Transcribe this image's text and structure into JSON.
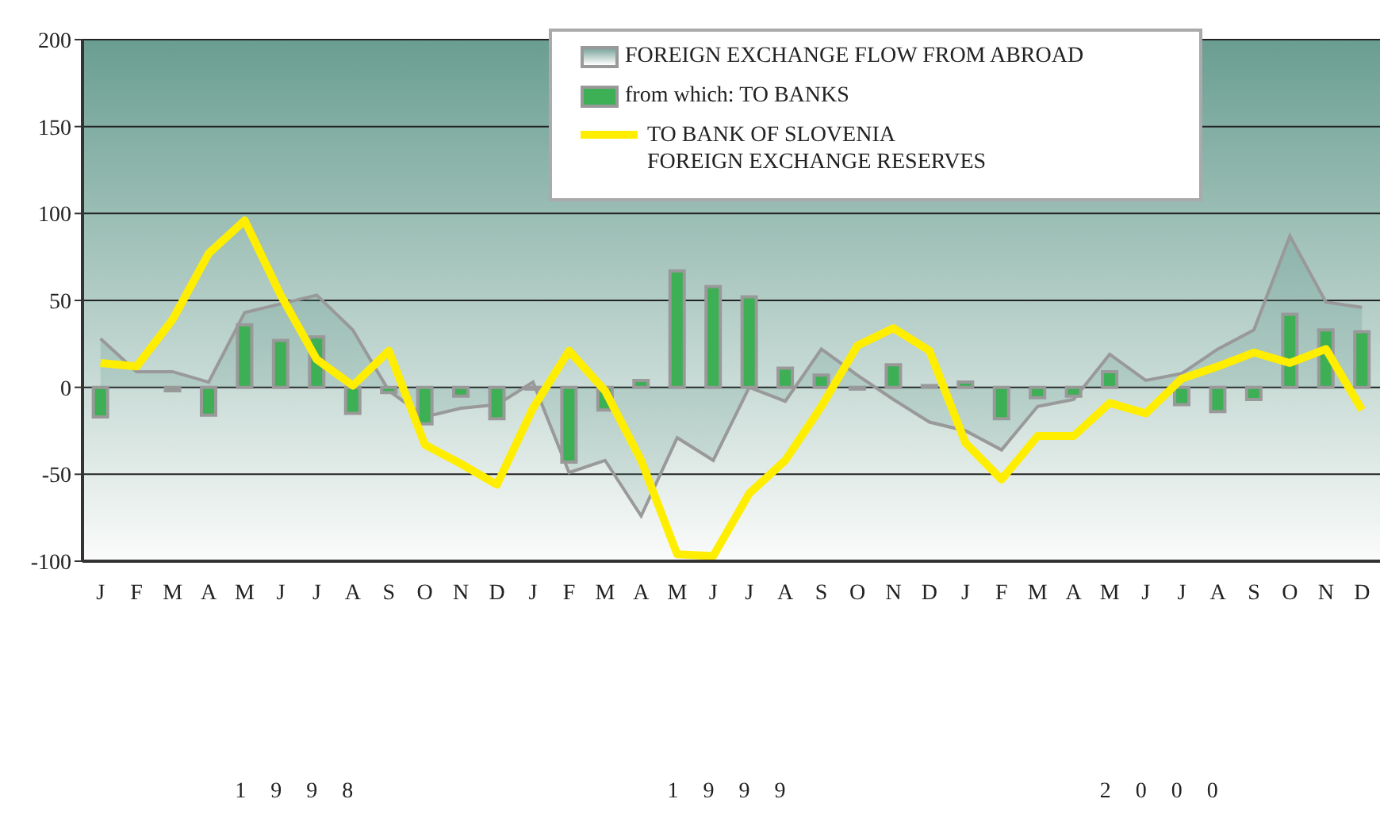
{
  "chart_data": {
    "type": "bar",
    "categories": [
      "J",
      "F",
      "M",
      "A",
      "M",
      "J",
      "J",
      "A",
      "S",
      "O",
      "N",
      "D",
      "J",
      "F",
      "M",
      "A",
      "M",
      "J",
      "J",
      "A",
      "S",
      "O",
      "N",
      "D",
      "J",
      "F",
      "M",
      "A",
      "M",
      "J",
      "J",
      "A",
      "S",
      "O",
      "N",
      "D"
    ],
    "series": [
      {
        "name": "FOREIGN EXCHANGE FLOW FROM ABROAD",
        "type": "area",
        "color": "#7fa89e",
        "values": [
          28,
          9,
          9,
          3,
          43,
          48,
          53,
          33,
          -2,
          -17,
          -12,
          -10,
          3,
          -49,
          -42,
          -74,
          -29,
          -42,
          0,
          -8,
          22,
          7,
          -7,
          -20,
          -25,
          -36,
          -11,
          -7,
          19,
          4,
          8,
          22,
          33,
          87,
          49,
          46
        ]
      },
      {
        "name": "from which: TO BANKS",
        "color": "#3daf55",
        "values": [
          -17,
          0,
          -2,
          -16,
          36,
          27,
          29,
          -15,
          -3,
          -21,
          -5,
          -18,
          -1,
          -43,
          -13,
          4,
          67,
          58,
          52,
          11,
          7,
          -1,
          13,
          1,
          3,
          -18,
          -6,
          -5,
          9,
          0,
          -10,
          -14,
          -7,
          42,
          33,
          32
        ]
      },
      {
        "name": "TO BANK OF SLOVENIA\nFOREIGN EXCHANGE RESERVES",
        "type": "line",
        "color": "#ffee00",
        "values": [
          14,
          12,
          39,
          77,
          96,
          53,
          16,
          1,
          21,
          -33,
          -44,
          -56,
          -12,
          21,
          -2,
          -42,
          -96,
          -97,
          -61,
          -42,
          -11,
          24,
          34,
          21,
          -32,
          -53,
          -28,
          -28,
          -9,
          -15,
          5,
          12,
          20,
          14,
          22,
          -13
        ]
      }
    ],
    "ylim": [
      -100,
      200
    ],
    "yticks": [
      -100,
      -50,
      0,
      50,
      100,
      150,
      200
    ],
    "grid": "y",
    "legend": "top right",
    "annotations": [
      "1 9 9 8",
      "1 9 9 9",
      "2 0 0 0"
    ]
  }
}
